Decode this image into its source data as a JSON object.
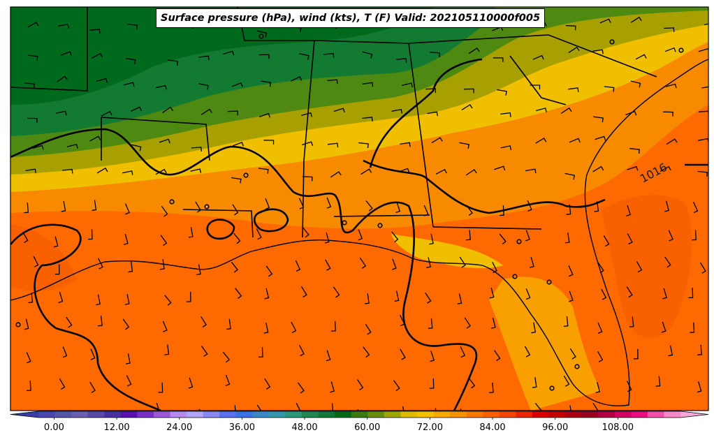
{
  "title": "Surface pressure (hPa), wind (kts), T (F) Valid: 202105110000f005",
  "isobar_label": "1016",
  "colorbar": {
    "ticks": [
      "0.00",
      "12.00",
      "24.00",
      "36.00",
      "48.00",
      "60.00",
      "72.00",
      "84.00",
      "96.00",
      "108.00"
    ],
    "min": -3,
    "max": 120,
    "step": 3,
    "colors": [
      "#3b3ba8",
      "#4848b0",
      "#5656a8",
      "#6a5fb0",
      "#5a48a8",
      "#4a30a0",
      "#5a10b0",
      "#7a30c8",
      "#9a58d8",
      "#b888f0",
      "#b4a4f4",
      "#8a88f4",
      "#5a70f0",
      "#3a70e8",
      "#3888c8",
      "#3098a8",
      "#289878",
      "#1f8850",
      "#107838",
      "#006a1a",
      "#3a7a10",
      "#6a8c0c",
      "#a0a400",
      "#e0ba00",
      "#f4c000",
      "#f8a800",
      "#f89000",
      "#f87800",
      "#f86000",
      "#f04800",
      "#e82800",
      "#d80000",
      "#c00000",
      "#a80010",
      "#980020",
      "#b00040",
      "#d00060",
      "#e81080",
      "#f050a8",
      "#f888c8",
      "#f8a8d8"
    ]
  },
  "map_legend": {
    "layers": [
      "2m temperature (F) filled contours",
      "mean sea level pressure (hPa) isobars",
      "10m wind barbs (kts)",
      "state borders and coastlines"
    ],
    "colors": {
      "isobar": "#000000",
      "borders": "#000000",
      "barbs": "#000000"
    }
  }
}
